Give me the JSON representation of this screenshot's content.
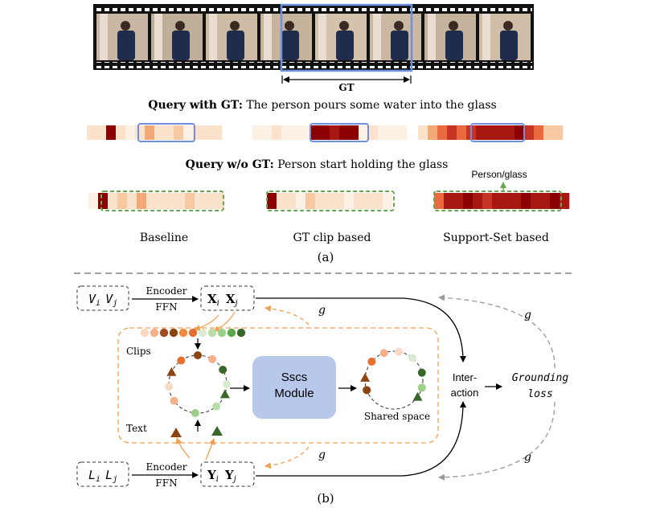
{
  "panel_a": {
    "gt_label": "GT",
    "query_gt_bold": "Query with GT:",
    "query_gt_text": " The person pours some water into the glass",
    "query_nogt_bold": "Query w/o GT:",
    "query_nogt_text": " Person start holding the glass",
    "annotation": "Person/glass",
    "methods": [
      "Baseline",
      "GT clip based",
      "Support-Set based"
    ],
    "caption": "(a)"
  },
  "panel_b": {
    "v_i": "V",
    "v_i_sub": "i",
    "v_j": "V",
    "v_j_sub": "j",
    "l_i": "L",
    "l_i_sub": "i",
    "l_j": "L",
    "l_j_sub": "j",
    "x_i": "X",
    "x_i_sub": "i",
    "x_j": "X",
    "x_j_sub": "j",
    "y_i": "Y",
    "y_i_sub": "i",
    "y_j": "Y",
    "y_j_sub": "j",
    "encoder_top": "Encoder",
    "ffn_top": "FFN",
    "encoder_bottom": "Encoder",
    "ffn_bottom": "FFN",
    "g_label": "g",
    "clips_label": "Clips",
    "text_label": "Text",
    "module_line1": "Sscs",
    "module_line2": "Module",
    "shared_space_label": "Shared space",
    "interaction_line1": "Inter-",
    "interaction_line2": "action",
    "loss_line1": "Grounding",
    "loss_line2": "loss",
    "caption": "(b)"
  },
  "colors": {
    "gt_box": "#6f8fe0",
    "dashed_green": "#6aa84f",
    "orange_dashed": "#f0a050",
    "module_fill": "#b7c8ea",
    "dark_red": "#8b0000",
    "brown": "#8b4513",
    "dark_green": "#38662a"
  }
}
